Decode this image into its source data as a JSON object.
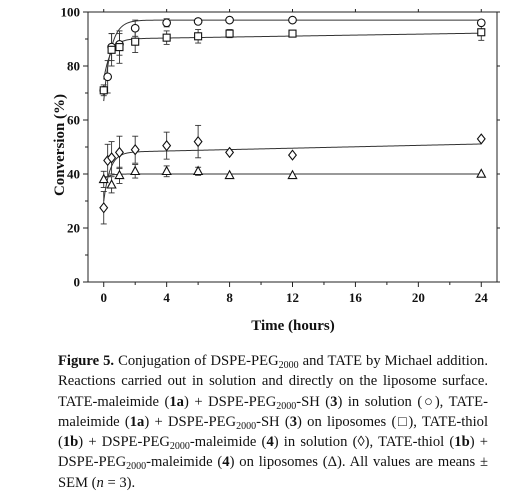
{
  "chart_data": {
    "type": "scatter",
    "ylabel": "Conversion (%)",
    "xlabel": "Time (hours)",
    "xlim": [
      -1,
      25
    ],
    "ylim": [
      0,
      100
    ],
    "xticks": [
      0,
      4,
      8,
      12,
      16,
      20,
      24
    ],
    "yticks": [
      0,
      20,
      40,
      60,
      80,
      100
    ],
    "grid": false,
    "legend": "none",
    "series": [
      {
        "marker": "circle",
        "points": [
          {
            "x": 0,
            "y": 71,
            "err": 0
          },
          {
            "x": 0.25,
            "y": 76,
            "err": 6
          },
          {
            "x": 0.5,
            "y": 87,
            "err": 5
          },
          {
            "x": 1,
            "y": 88,
            "err": 4
          },
          {
            "x": 2,
            "y": 94,
            "err": 3
          },
          {
            "x": 4,
            "y": 96,
            "err": 1.5
          },
          {
            "x": 6,
            "y": 96.5,
            "err": 1
          },
          {
            "x": 8,
            "y": 97,
            "err": 1
          },
          {
            "x": 12,
            "y": 97,
            "err": 0.5
          },
          {
            "x": 24,
            "y": 96,
            "err": 1
          }
        ],
        "fit": {
          "a": 97,
          "b": 30,
          "k": 2.2
        }
      },
      {
        "marker": "square",
        "points": [
          {
            "x": 0,
            "y": 71,
            "err": 2
          },
          {
            "x": 0.5,
            "y": 86,
            "err": 6
          },
          {
            "x": 1,
            "y": 87,
            "err": 6
          },
          {
            "x": 2,
            "y": 89,
            "err": 4
          },
          {
            "x": 4,
            "y": 90.5,
            "err": 2.5
          },
          {
            "x": 6,
            "y": 91,
            "err": 2.5
          },
          {
            "x": 8,
            "y": 92,
            "err": 1.5
          },
          {
            "x": 12,
            "y": 92,
            "err": 1
          },
          {
            "x": 24,
            "y": 92.5,
            "err": 3
          }
        ],
        "fit": {
          "a": 90,
          "b": 15,
          "k": 2.3,
          "m": 0.09
        }
      },
      {
        "marker": "diamond",
        "points": [
          {
            "x": 0,
            "y": 27.5,
            "err": 6
          },
          {
            "x": 0.25,
            "y": 45,
            "err": 6
          },
          {
            "x": 0.5,
            "y": 46,
            "err": 6
          },
          {
            "x": 1,
            "y": 48,
            "err": 6
          },
          {
            "x": 2,
            "y": 49,
            "err": 5
          },
          {
            "x": 4,
            "y": 50.5,
            "err": 5
          },
          {
            "x": 6,
            "y": 52,
            "err": 6
          },
          {
            "x": 8,
            "y": 48,
            "err": 0
          },
          {
            "x": 12,
            "y": 47,
            "err": 0
          },
          {
            "x": 24,
            "y": 53,
            "err": 0
          }
        ],
        "fit": {
          "a": 48,
          "b": 18,
          "k": 2.5,
          "m": 0.13
        }
      },
      {
        "marker": "triangle",
        "points": [
          {
            "x": 0,
            "y": 38,
            "err": 3
          },
          {
            "x": 0.5,
            "y": 36,
            "err": 3
          },
          {
            "x": 1,
            "y": 39.5,
            "err": 3
          },
          {
            "x": 2,
            "y": 41,
            "err": 2.5
          },
          {
            "x": 4,
            "y": 41,
            "err": 2
          },
          {
            "x": 6,
            "y": 41,
            "err": 1.5
          },
          {
            "x": 8,
            "y": 39.5,
            "err": 0
          },
          {
            "x": 12,
            "y": 39.5,
            "err": 0
          },
          {
            "x": 24,
            "y": 40,
            "err": 0
          }
        ],
        "fit": {
          "a": 40,
          "b": 2,
          "k": 3
        }
      }
    ]
  },
  "caption": {
    "label": "Figure 5.",
    "parts": [
      {
        "t": " Conjugation of DSPE-PEG"
      },
      {
        "s": "2000"
      },
      {
        "t": " and TATE by Michael addition. Reactions carried out in solution and directly on the liposome surface. TATE-maleimide ("
      },
      {
        "b": "1a"
      },
      {
        "t": ") + DSPE-PEG"
      },
      {
        "s": "2000"
      },
      {
        "t": "-SH ("
      },
      {
        "b": "3"
      },
      {
        "t": ") in solution (○), TATE-maleimide ("
      },
      {
        "b": "1a"
      },
      {
        "t": ") + DSPE-PEG"
      },
      {
        "s": "2000"
      },
      {
        "t": "-SH ("
      },
      {
        "b": "3"
      },
      {
        "t": ") on liposomes (□), TATE-thiol ("
      },
      {
        "b": "1b"
      },
      {
        "t": ") + DSPE-PEG"
      },
      {
        "s": "2000"
      },
      {
        "t": "-maleimide ("
      },
      {
        "b": "4"
      },
      {
        "t": ") in solution (◊), TATE-thiol ("
      },
      {
        "b": "1b"
      },
      {
        "t": ") + DSPE-PEG"
      },
      {
        "s": "2000"
      },
      {
        "t": "-maleimide ("
      },
      {
        "b": "4"
      },
      {
        "t": ") on liposomes (Δ). All values are means ± SEM ("
      },
      {
        "i": "n"
      },
      {
        "t": " = 3)."
      }
    ]
  }
}
